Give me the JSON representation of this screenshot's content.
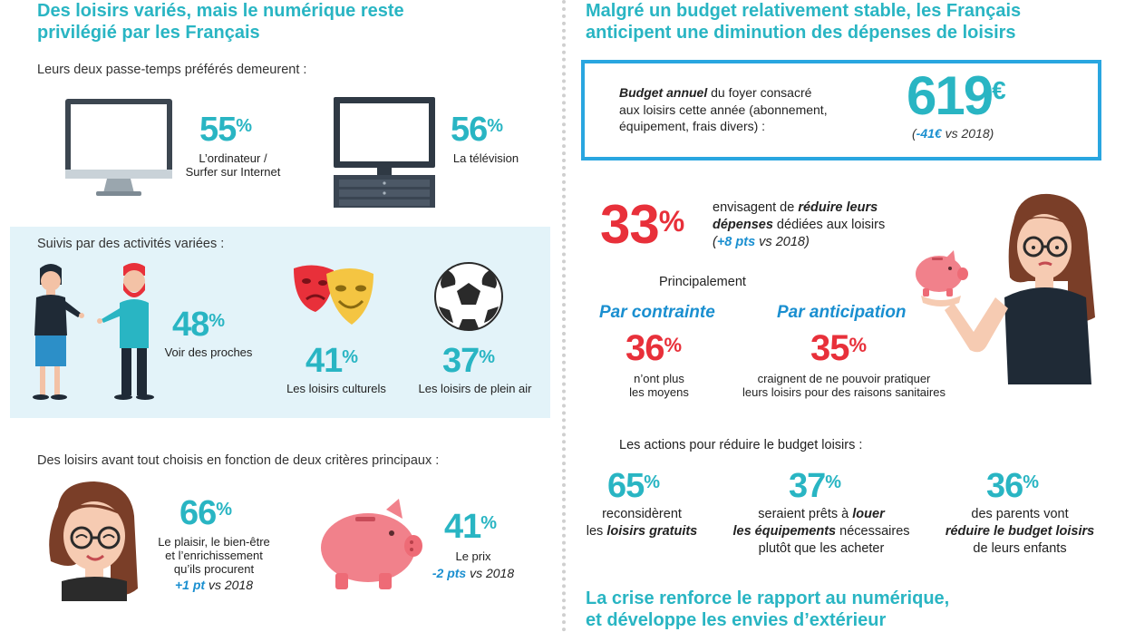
{
  "left": {
    "title_line1": "Des loisirs variés, mais le numérique reste",
    "title_line2": "privilégié par les Français",
    "favorites_intro": "Leurs deux passe-temps préférés demeurent :",
    "computer": {
      "value": "55",
      "unit": "%",
      "label_line1": "L’ordinateur /",
      "label_line2": "Surfer sur Internet"
    },
    "tv": {
      "value": "56",
      "unit": "%",
      "label": "La télévision"
    },
    "activities_intro": "Suivis par des activités variées :",
    "relatives": {
      "value": "48",
      "unit": "%",
      "label": "Voir des proches"
    },
    "cultural": {
      "value": "41",
      "unit": "%",
      "label": "Les loisirs culturels"
    },
    "outdoor": {
      "value": "37",
      "unit": "%",
      "label": "Les loisirs de plein air"
    },
    "criteria_intro": "Des loisirs avant tout choisis en fonction de deux critères principaux :",
    "pleasure": {
      "value": "66",
      "unit": "%",
      "label_line1": "Le plaisir, le bien-être",
      "label_line2": "et l’enrichissement",
      "label_line3": "qu’ils procurent",
      "delta": "+1 pt",
      "delta_ref": "vs 2018"
    },
    "price": {
      "value": "41",
      "unit": "%",
      "label": "Le prix",
      "delta": "-2 pts",
      "delta_ref": "vs 2018"
    }
  },
  "right": {
    "title_line1": "Malgré un budget relativement stable, les Français",
    "title_line2": "anticipent une diminution des dépenses de loisirs",
    "budget": {
      "label_bold": "Budget annuel",
      "label_rest1": " du foyer consacré",
      "label_line2": "aux loisirs cette année (abonnement,",
      "label_line3": "équipement, frais divers) :",
      "value": "619",
      "unit": "€",
      "delta_open": "(",
      "delta": "-41€",
      "delta_ref": " vs 2018)"
    },
    "reduce": {
      "value": "33",
      "unit": "%",
      "text1": "envisagent de ",
      "text1_bi": "réduire leurs",
      "text2_bi": "dépenses",
      "text2": " dédiées aux loisirs",
      "delta_open": "(",
      "delta": "+8 pts",
      "delta_ref": " vs 2018)"
    },
    "mainly": "Principalement",
    "constraint": {
      "heading": "Par contrainte",
      "value": "36",
      "unit": "%",
      "label_line1": "n’ont plus",
      "label_line2": "les moyens"
    },
    "anticipation": {
      "heading": "Par anticipation",
      "value": "35",
      "unit": "%",
      "label_line1": "craignent de ne pouvoir pratiquer",
      "label_line2": "leurs loisirs pour des raisons sanitaires"
    },
    "actions_intro": "Les actions pour réduire le budget loisirs :",
    "action1": {
      "value": "65",
      "unit": "%",
      "line1": "reconsidèrent",
      "line2": "les ",
      "line2_bi": "loisirs gratuits"
    },
    "action2": {
      "value": "37",
      "unit": "%",
      "line1": "seraient prêts à ",
      "line1_bi": "louer",
      "line2_bi": "les équipements",
      "line2": " nécessaires",
      "line3": "plutôt que les acheter"
    },
    "action3": {
      "value": "36",
      "unit": "%",
      "line1": "des parents vont",
      "line2_bi": "réduire le budget loisirs",
      "line3": "de leurs enfants"
    },
    "footer_title_line1": "La crise renforce le rapport au numérique,",
    "footer_title_line2": "et développe les envies d’extérieur"
  },
  "colors": {
    "teal": "#29b5c3",
    "red": "#e8303a",
    "blue": "#1a8fd0",
    "panel": "#e3f3f9",
    "frame": "#29a6e0"
  }
}
